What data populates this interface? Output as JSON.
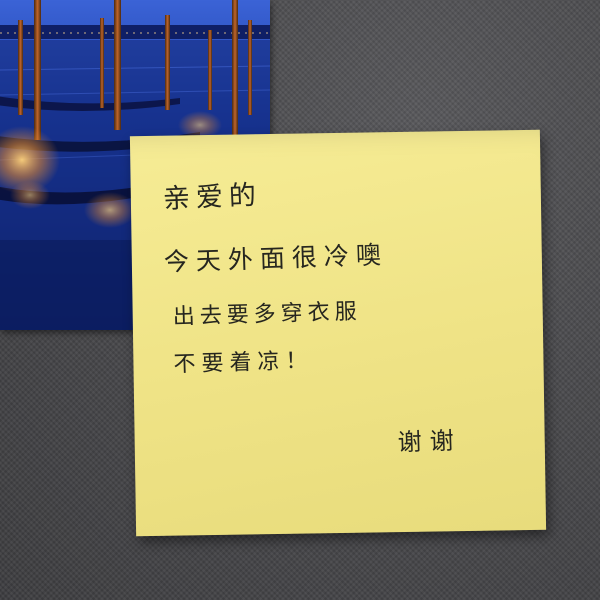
{
  "note": {
    "greeting": "亲爱的",
    "line1": "今天外面很冷噢",
    "line2": "出去要多穿衣服",
    "line3": "不要着凉！",
    "signature": "谢谢"
  },
  "colors": {
    "sticky_note": "#f2e68b",
    "ink": "#26261f",
    "background_fabric": "#4a4a4c",
    "photo_sky": "#1d3fa8",
    "photo_lights": "#f0a040"
  }
}
